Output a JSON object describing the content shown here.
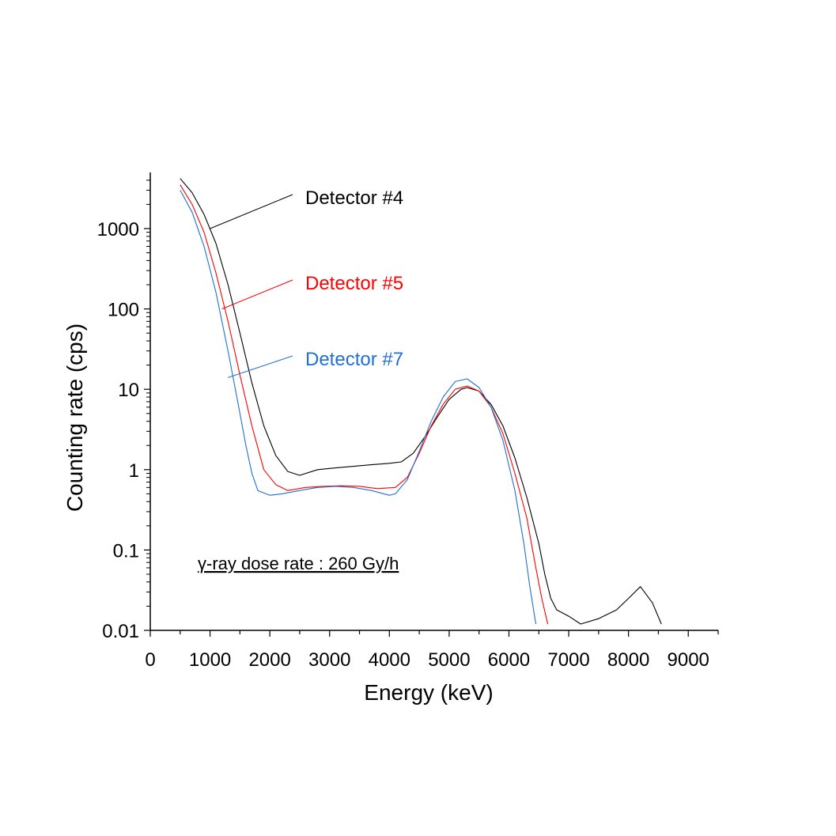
{
  "chart_data": {
    "type": "line",
    "xlabel": "Energy (keV)",
    "ylabel": "Counting rate (cps)",
    "xlim": [
      0,
      9500
    ],
    "ylim": [
      0.01,
      5000
    ],
    "y_scale": "log",
    "x_ticks": [
      0,
      1000,
      2000,
      3000,
      4000,
      5000,
      6000,
      7000,
      8000,
      9000
    ],
    "x_tick_labels": [
      "0",
      "1000",
      "2000",
      "3000",
      "4000",
      "5000",
      "6000",
      "7000",
      "8000",
      "9000"
    ],
    "y_ticks": [
      0.01,
      0.1,
      1,
      10,
      100,
      1000
    ],
    "y_tick_labels": [
      "0.01",
      "0.1",
      "1",
      "10",
      "100",
      "1000"
    ],
    "grid": false,
    "annotation": "γ-ray dose rate : 260 Gy/h",
    "series": [
      {
        "name": "Detector #4",
        "color": "#000000",
        "label_anchor": [
          1000,
          1000
        ],
        "x": [
          500,
          700,
          900,
          1100,
          1300,
          1500,
          1700,
          1900,
          2100,
          2300,
          2500,
          2800,
          3100,
          3400,
          3700,
          4000,
          4200,
          4400,
          4600,
          4800,
          5000,
          5200,
          5300,
          5500,
          5700,
          5900,
          6100,
          6300,
          6500,
          6600,
          6700,
          6800,
          7000,
          7200,
          7500,
          7800,
          8000,
          8200,
          8400,
          8550
        ],
        "y": [
          4200,
          2800,
          1500,
          650,
          200,
          50,
          12,
          3.5,
          1.5,
          0.95,
          0.85,
          1.0,
          1.05,
          1.1,
          1.15,
          1.2,
          1.25,
          1.6,
          2.6,
          4.5,
          7.5,
          10,
          10.5,
          9.5,
          6.5,
          3.5,
          1.4,
          0.45,
          0.12,
          0.05,
          0.025,
          0.018,
          0.015,
          0.012,
          0.014,
          0.018,
          0.025,
          0.035,
          0.022,
          0.012
        ]
      },
      {
        "name": "Detector #5",
        "color": "#ff0000",
        "label_anchor": [
          1200,
          100
        ],
        "x": [
          500,
          700,
          900,
          1100,
          1300,
          1500,
          1700,
          1900,
          2100,
          2300,
          2600,
          2900,
          3200,
          3500,
          3800,
          4100,
          4300,
          4500,
          4700,
          4900,
          5100,
          5300,
          5500,
          5700,
          5900,
          6100,
          6300,
          6450,
          6550,
          6650
        ],
        "y": [
          3500,
          2000,
          900,
          280,
          70,
          15,
          3.5,
          1.0,
          0.65,
          0.55,
          0.6,
          0.62,
          0.63,
          0.62,
          0.58,
          0.6,
          0.8,
          1.6,
          3.5,
          6.5,
          10,
          11,
          9.5,
          6,
          2.8,
          0.9,
          0.25,
          0.06,
          0.025,
          0.012
        ]
      },
      {
        "name": "Detector #7",
        "color": "#1f6fd6",
        "label_anchor": [
          1300,
          14
        ],
        "x": [
          500,
          700,
          900,
          1100,
          1300,
          1500,
          1600,
          1700,
          1800,
          2000,
          2200,
          2500,
          2800,
          3100,
          3400,
          3700,
          4000,
          4100,
          4300,
          4500,
          4700,
          4900,
          5100,
          5300,
          5500,
          5700,
          5900,
          6100,
          6250,
          6350,
          6450
        ],
        "y": [
          3000,
          1600,
          600,
          160,
          30,
          5,
          2,
          0.9,
          0.55,
          0.48,
          0.5,
          0.55,
          0.6,
          0.62,
          0.6,
          0.55,
          0.48,
          0.5,
          0.75,
          1.7,
          4,
          8,
          12.5,
          13.5,
          10.5,
          6,
          2.3,
          0.55,
          0.12,
          0.035,
          0.012
        ]
      }
    ]
  }
}
